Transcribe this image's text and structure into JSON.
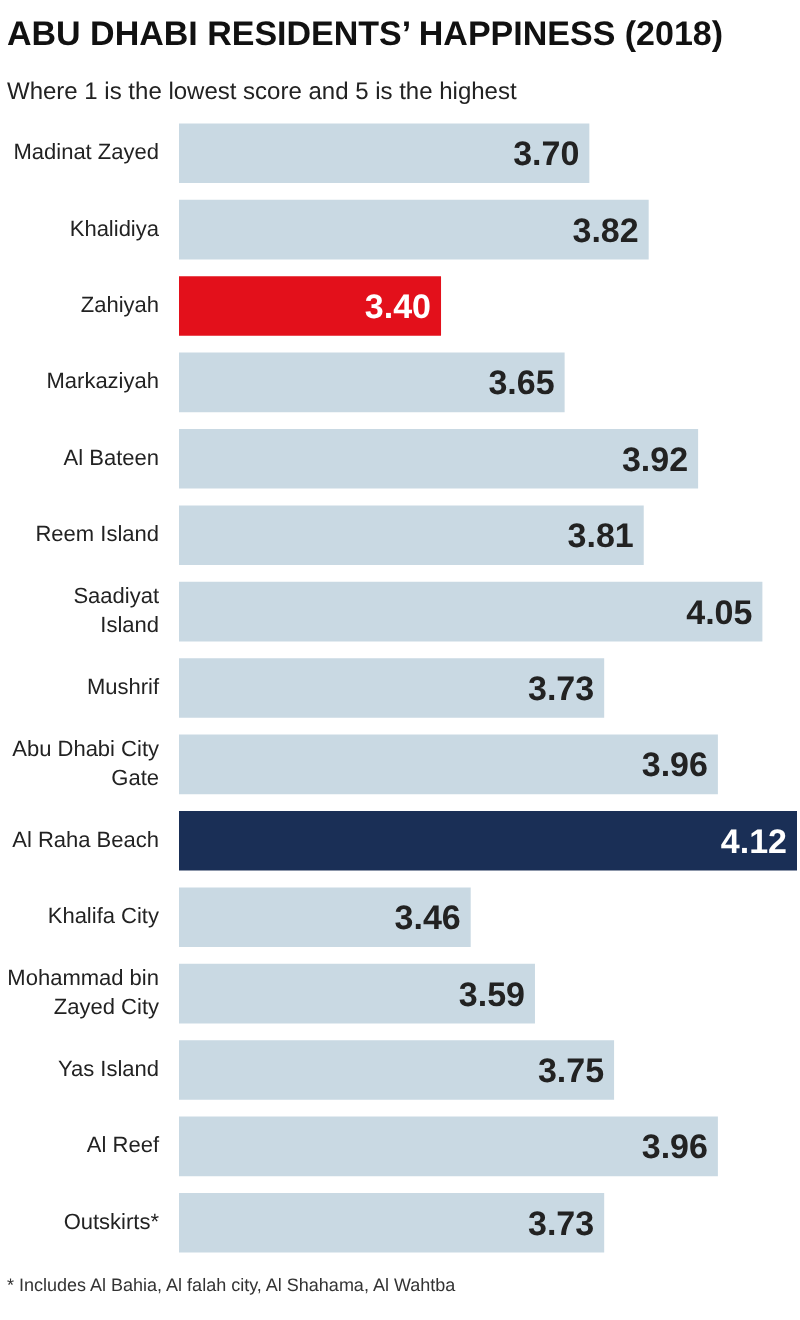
{
  "chart_data": {
    "type": "bar",
    "orientation": "horizontal",
    "title": "ABU DHABI RESIDENTS’ HAPPINESS (2018)",
    "subtitle": "Where 1 is the lowest score and 5 is the highest",
    "categories": [
      "Madinat Zayed",
      "Khalidiya",
      "Zahiyah",
      "Markaziyah",
      "Al Bateen",
      "Reem Island",
      "Saadiyat Island",
      "Mushrif",
      "Abu Dhabi City Gate",
      "Al Raha Beach",
      "Khalifa City",
      "Mohammad bin Zayed City",
      "Yas Island",
      "Al Reef",
      "Outskirts*"
    ],
    "values": [
      3.7,
      3.82,
      3.4,
      3.65,
      3.92,
      3.81,
      4.05,
      3.73,
      3.96,
      4.12,
      3.46,
      3.59,
      3.75,
      3.96,
      3.73
    ],
    "colors": [
      "#c9d9e3",
      "#c9d9e3",
      "#e3101b",
      "#c9d9e3",
      "#c9d9e3",
      "#c9d9e3",
      "#c9d9e3",
      "#c9d9e3",
      "#c9d9e3",
      "#1a2f56",
      "#c9d9e3",
      "#c9d9e3",
      "#c9d9e3",
      "#c9d9e3",
      "#c9d9e3"
    ],
    "value_labels": [
      "3.70",
      "3.82",
      "3.40",
      "3.65",
      "3.92",
      "3.81",
      "4.05",
      "3.73",
      "3.96",
      "4.12",
      "3.46",
      "3.59",
      "3.75",
      "3.96",
      "3.73"
    ],
    "xlim": [
      2.87,
      4.12
    ],
    "tick_labels": "y",
    "grid": false,
    "annotations": [
      "* Includes Al Bahia, Al falah city, Al Shahama, Al Wahtba"
    ]
  }
}
